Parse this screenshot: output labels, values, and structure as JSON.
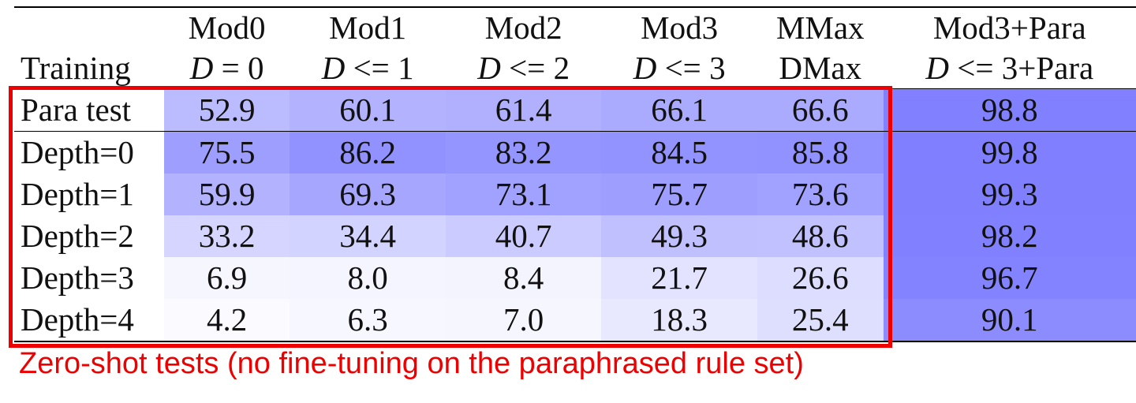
{
  "chart_data": {
    "type": "table",
    "corner_label": "Training",
    "columns": [
      {
        "model": "Mod0",
        "depth_prefix": "D",
        "depth_op": " = ",
        "depth_val": "0"
      },
      {
        "model": "Mod1",
        "depth_prefix": "D",
        "depth_op": " <= ",
        "depth_val": "1"
      },
      {
        "model": "Mod2",
        "depth_prefix": "D",
        "depth_op": " <= ",
        "depth_val": "2"
      },
      {
        "model": "Mod3",
        "depth_prefix": "D",
        "depth_op": " <= ",
        "depth_val": "3"
      },
      {
        "model": "MMax",
        "depth_prefix": "",
        "depth_op": "",
        "depth_val": "DMax"
      },
      {
        "model": "Mod3+Para",
        "depth_prefix": "D",
        "depth_op": " <= ",
        "depth_val": "3+Para"
      }
    ],
    "rows": [
      {
        "label": "Para test",
        "values": [
          52.9,
          60.1,
          61.4,
          66.1,
          66.6,
          98.8
        ]
      },
      {
        "label": "Depth=0",
        "values": [
          75.5,
          86.2,
          83.2,
          84.5,
          85.8,
          99.8
        ]
      },
      {
        "label": "Depth=1",
        "values": [
          59.9,
          69.3,
          73.1,
          75.7,
          73.6,
          99.3
        ]
      },
      {
        "label": "Depth=2",
        "values": [
          33.2,
          34.4,
          40.7,
          49.3,
          48.6,
          98.2
        ]
      },
      {
        "label": "Depth=3",
        "values": [
          6.9,
          8.0,
          8.4,
          21.7,
          26.6,
          96.7
        ]
      },
      {
        "label": "Depth=4",
        "values": [
          4.2,
          6.3,
          7.0,
          18.3,
          25.4,
          90.1
        ]
      }
    ],
    "heat_color_low": "#ffffff",
    "heat_color_high": "#7f7fff",
    "highlight_color": "#ee0000",
    "caption": "Zero-shot tests (no fine-tuning on the paraphrased rule set)"
  }
}
